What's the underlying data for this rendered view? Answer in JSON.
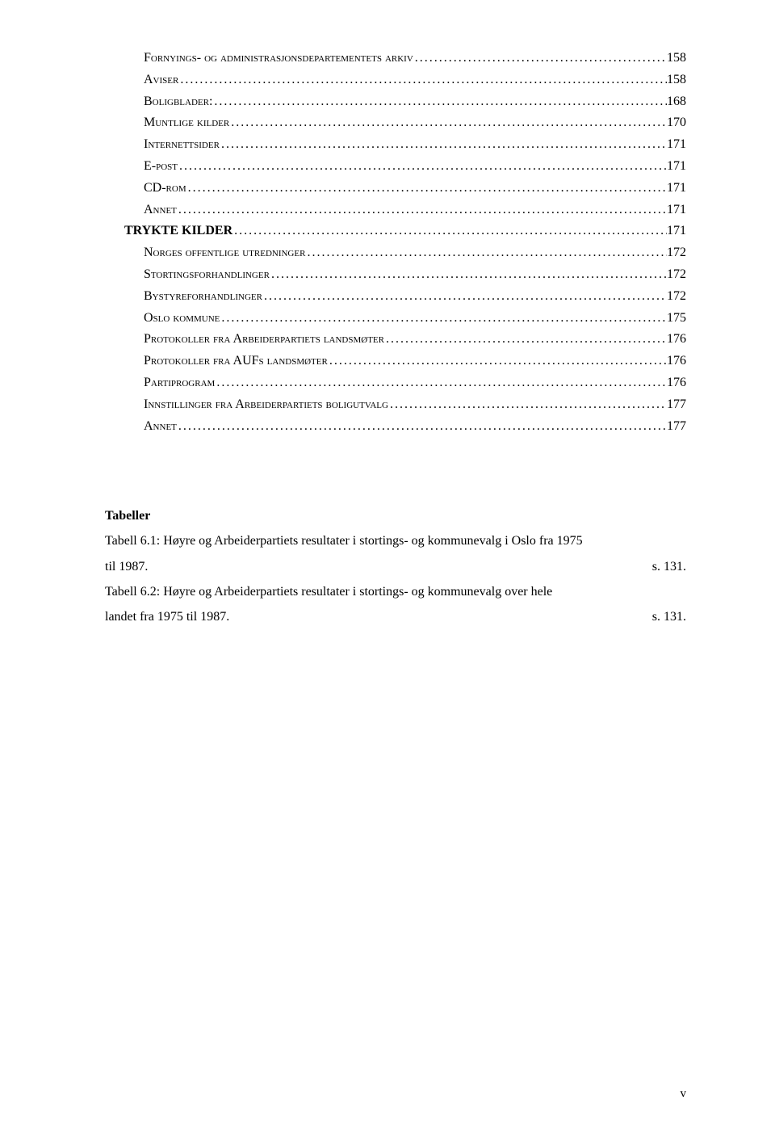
{
  "toc": [
    {
      "label": "Fornyings- og administrasjonsdepartementets arkiv",
      "page": "158",
      "indent": 2,
      "bold": false
    },
    {
      "label": "Aviser",
      "page": "158",
      "indent": 2,
      "bold": false
    },
    {
      "label": "Boligblader:",
      "page": "168",
      "indent": 2,
      "bold": false
    },
    {
      "label": "Muntlige kilder",
      "page": "170",
      "indent": 2,
      "bold": false
    },
    {
      "label": "Internettsider",
      "page": "171",
      "indent": 2,
      "bold": false
    },
    {
      "label": "E-post",
      "page": "171",
      "indent": 2,
      "bold": false
    },
    {
      "label": "CD-rom",
      "page": "171",
      "indent": 2,
      "bold": false
    },
    {
      "label": "Annet",
      "page": "171",
      "indent": 2,
      "bold": false
    },
    {
      "label": "TRYKTE KILDER",
      "page": "171",
      "indent": 1,
      "bold": true
    },
    {
      "label": "Norges offentlige utredninger",
      "page": "172",
      "indent": 2,
      "bold": false
    },
    {
      "label": "Stortingsforhandlinger",
      "page": "172",
      "indent": 2,
      "bold": false
    },
    {
      "label": "Bystyreforhandlinger",
      "page": "172",
      "indent": 2,
      "bold": false
    },
    {
      "label": "Oslo kommune",
      "page": "175",
      "indent": 2,
      "bold": false
    },
    {
      "label": "Protokoller fra Arbeiderpartiets landsmøter",
      "page": "176",
      "indent": 2,
      "bold": false
    },
    {
      "label": "Protokoller fra AUFs landsmøter",
      "page": "176",
      "indent": 2,
      "bold": false
    },
    {
      "label": "Partiprogram",
      "page": "176",
      "indent": 2,
      "bold": false
    },
    {
      "label": "Innstillinger fra Arbeiderpartiets boligutvalg",
      "page": "177",
      "indent": 2,
      "bold": false
    },
    {
      "label": "Annet",
      "page": "177",
      "indent": 2,
      "bold": false
    }
  ],
  "tabeller": {
    "heading": "Tabeller",
    "items": [
      {
        "line1": "Tabell 6.1: Høyre og Arbeiderpartiets resultater i stortings- og kommunevalg i Oslo fra 1975",
        "line2_left": "til 1987.",
        "line2_right": "s. 131."
      },
      {
        "line1": "Tabell 6.2: Høyre og Arbeiderpartiets resultater i stortings- og kommunevalg over hele",
        "line2_left": "landet fra 1975 til 1987.",
        "line2_right": "s. 131."
      }
    ]
  },
  "footer": "v"
}
